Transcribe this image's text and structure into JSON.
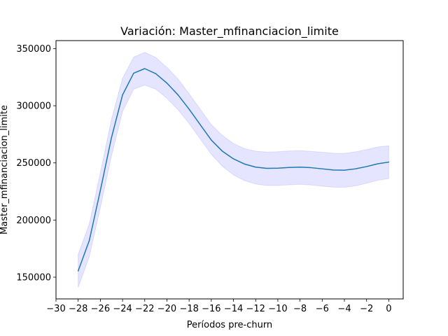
{
  "chart_data": {
    "type": "line",
    "title": "Variación: Master_mfinanciacion_limite",
    "xlabel": "Períodos pre-churn",
    "ylabel": "Master_mfinanciacion_limite",
    "xlim": [
      -30,
      1.3
    ],
    "ylim": [
      131000,
      357000
    ],
    "x_ticks": [
      -30,
      -28,
      -26,
      -24,
      -22,
      -20,
      -18,
      -16,
      -14,
      -12,
      -10,
      -8,
      -6,
      -4,
      -2,
      0
    ],
    "x_tick_labels": [
      "−30",
      "−28",
      "−26",
      "−24",
      "−22",
      "−20",
      "−18",
      "−16",
      "−14",
      "−12",
      "−10",
      "−8",
      "−6",
      "−4",
      "−2",
      "0"
    ],
    "y_ticks": [
      150000,
      200000,
      250000,
      300000,
      350000
    ],
    "y_tick_labels": [
      "150000",
      "200000",
      "250000",
      "300000",
      "350000"
    ],
    "grid": false,
    "series": [
      {
        "line_color": "#1f77b4",
        "band_color": "#0000ff",
        "x": [
          -28,
          -27,
          -26,
          -25,
          -24,
          -23,
          -22,
          -21,
          -20,
          -19,
          -18,
          -17,
          -16,
          -15,
          -14,
          -13,
          -12,
          -11,
          -10,
          -9,
          -8,
          -7,
          -6,
          -5,
          -4,
          -3,
          -2,
          -1,
          0
        ],
        "y": [
          155500,
          182000,
          226000,
          272000,
          309500,
          328500,
          332500,
          328000,
          319800,
          309500,
          297000,
          283500,
          270000,
          260200,
          253500,
          249000,
          246300,
          245200,
          245400,
          246000,
          246300,
          245800,
          244800,
          243800,
          243600,
          244800,
          246800,
          249200,
          250700
        ],
        "lower": [
          141000,
          168000,
          211000,
          256000,
          295000,
          314500,
          318000,
          314500,
          306500,
          296500,
          284500,
          271000,
          257500,
          247000,
          239500,
          234500,
          231500,
          230200,
          230200,
          230800,
          231300,
          230700,
          229600,
          228800,
          228700,
          229900,
          232200,
          234700,
          236300
        ],
        "upper": [
          170000,
          196500,
          241500,
          288000,
          324000,
          342500,
          346800,
          342200,
          333500,
          323500,
          310500,
          297000,
          283500,
          274000,
          267000,
          262500,
          260200,
          259500,
          259800,
          260400,
          260700,
          260100,
          259300,
          258500,
          258300,
          259700,
          261700,
          263900,
          265000
        ]
      }
    ]
  }
}
